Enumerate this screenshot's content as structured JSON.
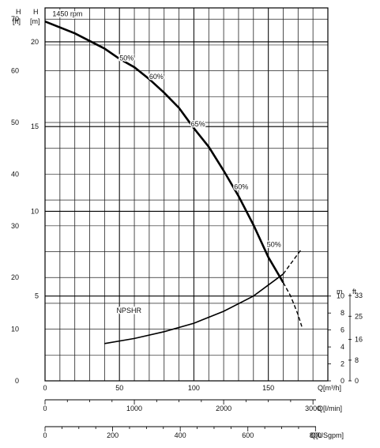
{
  "chart_data": {
    "type": "line",
    "title": "",
    "axes": {
      "h_ft": {
        "label_top": "H",
        "label_unit": "[ft]",
        "ticks": [
          0,
          10,
          20,
          30,
          40,
          50,
          60,
          70
        ]
      },
      "h_m": {
        "label_top": "H",
        "label_unit": "[m]",
        "ticks": [
          5,
          10,
          15,
          20
        ]
      },
      "npshr_m": {
        "label_top": "m",
        "ticks": [
          0,
          2,
          4,
          6,
          8,
          10
        ]
      },
      "npshr_ft": {
        "label_top": "ft",
        "ticks": [
          0,
          8,
          16,
          25,
          33
        ],
        "tick_labels": [
          "0",
          "8",
          "16",
          "25",
          "33"
        ]
      },
      "q_m3h": {
        "label": "Q[m³/h]",
        "ticks": [
          0,
          50,
          100,
          150
        ],
        "range": [
          0,
          190
        ]
      },
      "q_lmin": {
        "label": "Q[l/min]",
        "ticks": [
          0,
          1000,
          2000,
          3000
        ]
      },
      "q_usgpm": {
        "label": "Q[USgpm]",
        "ticks": [
          0,
          200,
          400,
          600,
          800
        ]
      }
    },
    "ylim_m": [
      0,
      22
    ],
    "grid": true,
    "series": [
      {
        "name": "1450 rpm",
        "unit_x": "m³/h",
        "unit_y": "m",
        "x": [
          0,
          20,
          40,
          50,
          60,
          70,
          80,
          90,
          100,
          110,
          120,
          130,
          140,
          150,
          160
        ],
        "y": [
          21.2,
          20.5,
          19.6,
          19.0,
          18.5,
          17.8,
          17.0,
          16.1,
          14.9,
          13.8,
          12.4,
          10.9,
          9.2,
          7.3,
          5.8
        ],
        "dashed_extension": {
          "x": [
            160,
            165,
            170,
            172.5
          ],
          "y": [
            5.8,
            5.0,
            3.9,
            3.2
          ]
        }
      },
      {
        "name": "NPSHR",
        "unit_x": "m³/h",
        "unit_y": "m",
        "x": [
          40,
          60,
          80,
          100,
          120,
          140,
          160
        ],
        "y": [
          2.2,
          2.5,
          2.9,
          3.4,
          4.1,
          5.0,
          6.3
        ],
        "dashed_extension": {
          "x": [
            160,
            170,
            172.5
          ],
          "y": [
            6.3,
            7.5,
            7.8
          ]
        }
      }
    ],
    "annotations": [
      {
        "text": "1450 rpm",
        "x": 5,
        "y": 21.5
      },
      {
        "text": "50%",
        "x": 50,
        "y": 18.9
      },
      {
        "text": "60%",
        "x": 70,
        "y": 17.8
      },
      {
        "text": "65%",
        "x": 98,
        "y": 15.0
      },
      {
        "text": "60%",
        "x": 127,
        "y": 11.3
      },
      {
        "text": "50%",
        "x": 149,
        "y": 7.9
      },
      {
        "text": "NPSHR",
        "x": 48,
        "y": 4.0
      }
    ]
  }
}
